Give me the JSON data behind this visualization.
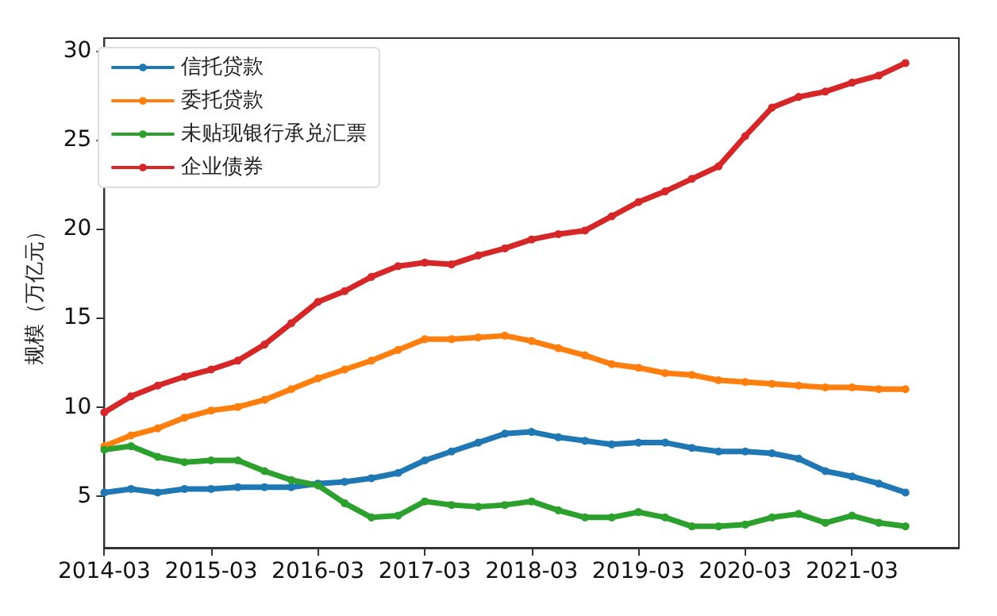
{
  "chart_data": {
    "type": "line",
    "ylabel": "规模（万亿元）",
    "categories": [
      "2014-03",
      null,
      null,
      null,
      "2015-03",
      null,
      null,
      null,
      "2016-03",
      null,
      null,
      null,
      "2017-03",
      null,
      null,
      null,
      "2018-03",
      null,
      null,
      null,
      "2019-03",
      null,
      null,
      null,
      "2020-03",
      null,
      null,
      null,
      "2021-03",
      null,
      null
    ],
    "series": [
      {
        "name": "信托贷款",
        "color": "#1f77b4",
        "values": [
          5.2,
          5.4,
          5.2,
          5.4,
          5.4,
          5.5,
          5.5,
          5.5,
          5.7,
          5.8,
          6.0,
          6.3,
          7.0,
          7.5,
          8.0,
          8.5,
          8.6,
          8.3,
          8.1,
          7.9,
          8.0,
          8.0,
          7.7,
          7.5,
          7.5,
          7.4,
          7.1,
          6.4,
          6.1,
          5.7,
          5.2
        ]
      },
      {
        "name": "委托贷款",
        "color": "#ff7f0e",
        "values": [
          7.8,
          8.4,
          8.8,
          9.4,
          9.8,
          10.0,
          10.4,
          11.0,
          11.6,
          12.1,
          12.6,
          13.2,
          13.8,
          13.8,
          13.9,
          14.0,
          13.7,
          13.3,
          12.9,
          12.4,
          12.2,
          11.9,
          11.8,
          11.5,
          11.4,
          11.3,
          11.2,
          11.1,
          11.1,
          11.0,
          11.0
        ]
      },
      {
        "name": "未贴现银行承兑汇票",
        "color": "#2ca02c",
        "values": [
          7.6,
          7.8,
          7.2,
          6.9,
          7.0,
          7.0,
          6.4,
          5.9,
          5.6,
          4.6,
          3.8,
          3.9,
          4.7,
          4.5,
          4.4,
          4.5,
          4.7,
          4.2,
          3.8,
          3.8,
          4.1,
          3.8,
          3.3,
          3.3,
          3.4,
          3.8,
          4.0,
          3.5,
          3.9,
          3.5,
          3.3
        ]
      },
      {
        "name": "企业债券",
        "color": "#d62728",
        "values": [
          9.7,
          10.6,
          11.2,
          11.7,
          12.1,
          12.6,
          13.5,
          14.7,
          15.9,
          16.5,
          17.3,
          17.9,
          18.1,
          18.0,
          18.5,
          18.9,
          19.4,
          19.7,
          19.9,
          20.7,
          21.5,
          22.1,
          22.8,
          23.5,
          25.2,
          26.8,
          27.4,
          27.7,
          28.2,
          28.6,
          29.3
        ]
      }
    ],
    "ylim": [
      2.1,
      30.7
    ],
    "yticks": [
      5,
      10,
      15,
      20,
      25,
      30
    ],
    "grid": false,
    "legend": "top left",
    "marker": "circle",
    "line_style": "solid"
  }
}
